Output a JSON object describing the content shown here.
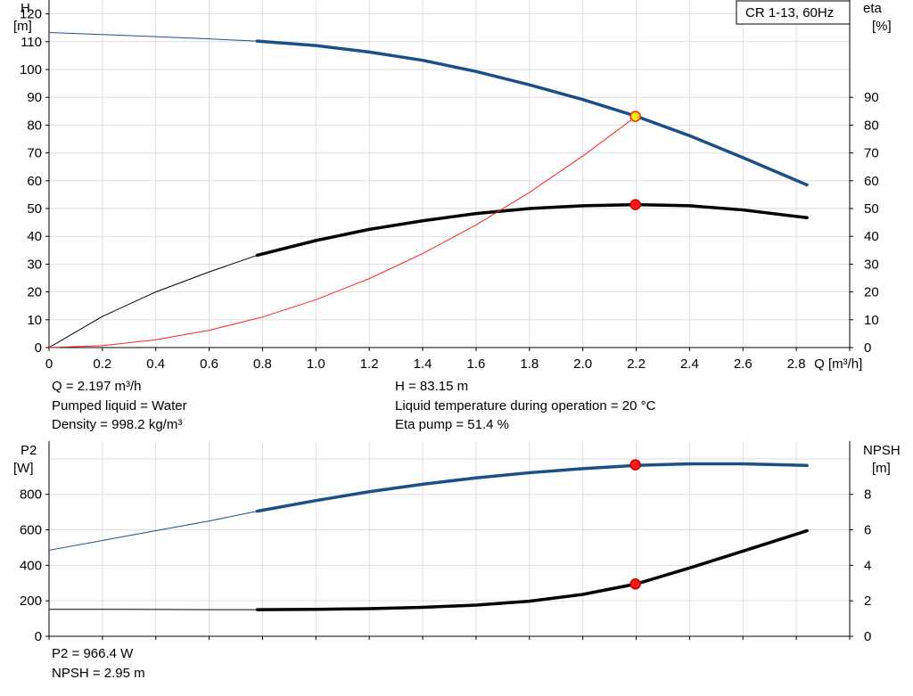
{
  "chart_data": [
    {
      "type": "line",
      "legend": "CR 1-13, 60Hz",
      "xlabel": "Q [m³/h]",
      "xlim": [
        0,
        3.0
      ],
      "x_ticks": [
        "0",
        "0.2",
        "0.4",
        "0.6",
        "0.8",
        "1.0",
        "1.2",
        "1.4",
        "1.6",
        "1.8",
        "2.0",
        "2.2",
        "2.4",
        "2.6",
        "2.8"
      ],
      "left_axis": {
        "label_top": "H",
        "label_unit": "[m]",
        "ylim": [
          0,
          125
        ],
        "ticks": [
          "0",
          "10",
          "20",
          "30",
          "40",
          "50",
          "60",
          "70",
          "80",
          "90",
          "100",
          "110",
          "120"
        ]
      },
      "right_axis": {
        "label_top": "eta",
        "label_unit": "[%]",
        "ylim": [
          0,
          125
        ],
        "ticks": [
          "0",
          "10",
          "20",
          "30",
          "40",
          "50",
          "60",
          "70",
          "80",
          "90"
        ]
      },
      "grid": true,
      "series": [
        {
          "key": "head",
          "axis": "left",
          "color": "#1b4f88",
          "x": [
            0,
            0.2,
            0.4,
            0.6,
            0.78,
            1.0,
            1.2,
            1.4,
            1.6,
            1.8,
            2.0,
            2.2,
            2.4,
            2.6,
            2.84
          ],
          "y": [
            113.3,
            112.6,
            111.8,
            111.0,
            110.2,
            108.6,
            106.3,
            103.3,
            99.3,
            94.5,
            89.2,
            83.2,
            76.2,
            68.3,
            58.5
          ]
        },
        {
          "key": "eta",
          "axis": "right",
          "color": "#000000",
          "x": [
            0,
            0.2,
            0.4,
            0.6,
            0.78,
            1.0,
            1.2,
            1.4,
            1.6,
            1.8,
            2.0,
            2.2,
            2.4,
            2.6,
            2.84
          ],
          "y": [
            0,
            11.2,
            20.0,
            27.2,
            33.2,
            38.5,
            42.5,
            45.6,
            48.2,
            50.0,
            51.0,
            51.4,
            51.0,
            49.5,
            46.7
          ]
        },
        {
          "key": "system",
          "axis": "left",
          "color": "#ff2020",
          "x": [
            0,
            0.2,
            0.4,
            0.6,
            0.8,
            1.0,
            1.2,
            1.4,
            1.6,
            1.8,
            2.0,
            2.2
          ],
          "y": [
            0,
            0.7,
            2.8,
            6.2,
            11.0,
            17.2,
            24.8,
            33.8,
            44.1,
            55.8,
            68.9,
            83.15
          ]
        }
      ],
      "markers": [
        {
          "x": 2.197,
          "y": 83.15,
          "axis": "left",
          "fill": "#ffee00",
          "stroke": "#ff2020"
        },
        {
          "x": 2.197,
          "y": 51.4,
          "axis": "right",
          "fill": "#ff1a1a",
          "stroke": "#cc0000"
        }
      ]
    },
    {
      "type": "line",
      "xlim": [
        0,
        3.0
      ],
      "left_axis": {
        "label_top": "P2",
        "label_unit": "[W]",
        "ylim": [
          0,
          1100
        ],
        "ticks": [
          "0",
          "200",
          "400",
          "600",
          "800"
        ]
      },
      "right_axis": {
        "label_top": "NPSH",
        "label_unit": "[m]",
        "ylim": [
          0,
          11
        ],
        "ticks": [
          "0",
          "2",
          "4",
          "6",
          "8"
        ]
      },
      "grid": true,
      "series": [
        {
          "key": "p2",
          "axis": "left",
          "color": "#1b4f88",
          "x": [
            0,
            0.2,
            0.4,
            0.6,
            0.78,
            1.0,
            1.2,
            1.4,
            1.6,
            1.8,
            2.0,
            2.2,
            2.4,
            2.6,
            2.84
          ],
          "y": [
            485,
            540,
            595,
            650,
            705,
            765,
            815,
            857,
            893,
            922,
            945,
            963,
            972,
            972,
            963
          ]
        },
        {
          "key": "npsh",
          "axis": "right",
          "color": "#000000",
          "x": [
            0,
            0.2,
            0.4,
            0.6,
            0.78,
            1.0,
            1.2,
            1.4,
            1.6,
            1.8,
            2.0,
            2.2,
            2.4,
            2.6,
            2.84
          ],
          "y": [
            1.52,
            1.52,
            1.51,
            1.5,
            1.5,
            1.52,
            1.56,
            1.63,
            1.76,
            1.98,
            2.36,
            2.95,
            3.85,
            4.8,
            5.95
          ]
        }
      ],
      "markers": [
        {
          "x": 2.197,
          "y": 966.4,
          "axis": "left",
          "fill": "#ff1a1a",
          "stroke": "#cc0000"
        },
        {
          "x": 2.197,
          "y": 2.95,
          "axis": "right",
          "fill": "#ff1a1a",
          "stroke": "#cc0000"
        }
      ]
    }
  ],
  "info_top": {
    "left": [
      "Q = 2.197 m³/h",
      "Pumped liquid = Water",
      "Density = 998.2 kg/m³"
    ],
    "right": [
      "H = 83.15 m",
      "Liquid temperature during operation = 20 °C",
      "Eta pump = 51.4 %"
    ]
  },
  "info_bottom": [
    "P2 = 966.4 W",
    "NPSH = 2.95 m"
  ]
}
